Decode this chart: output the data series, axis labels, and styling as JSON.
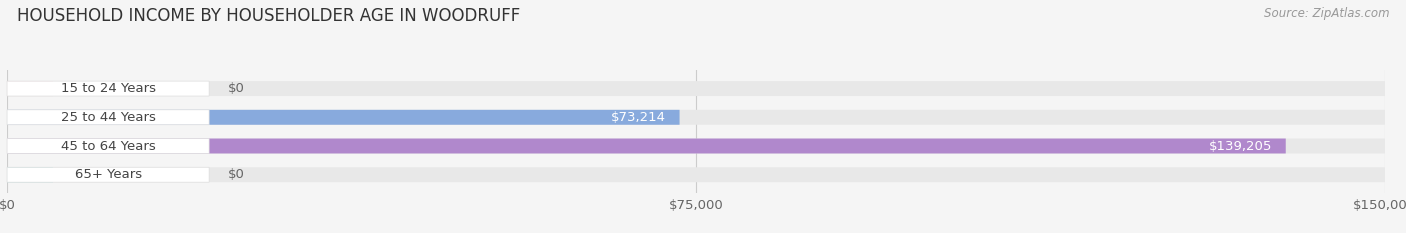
{
  "title": "HOUSEHOLD INCOME BY HOUSEHOLDER AGE IN WOODRUFF",
  "source": "Source: ZipAtlas.com",
  "categories": [
    "15 to 24 Years",
    "25 to 44 Years",
    "45 to 64 Years",
    "65+ Years"
  ],
  "values": [
    0,
    73214,
    139205,
    0
  ],
  "bar_colors": [
    "#f0a0aa",
    "#88aadd",
    "#b088cc",
    "#66cccc"
  ],
  "bar_bg_color": "#e8e8e8",
  "label_bg_color": "#ffffff",
  "xlim": [
    0,
    150000
  ],
  "xticks": [
    0,
    75000,
    150000
  ],
  "xtick_labels": [
    "$0",
    "$75,000",
    "$150,000"
  ],
  "label_inside_color": "#ffffff",
  "label_outside_color": "#666666",
  "title_fontsize": 12,
  "source_fontsize": 8.5,
  "tick_fontsize": 9.5,
  "bar_label_fontsize": 9.5,
  "cat_fontsize": 9.5,
  "background_color": "#f5f5f5",
  "value_label_zero": "$0",
  "value_labels": [
    "$0",
    "$73,214",
    "$139,205",
    "$0"
  ]
}
